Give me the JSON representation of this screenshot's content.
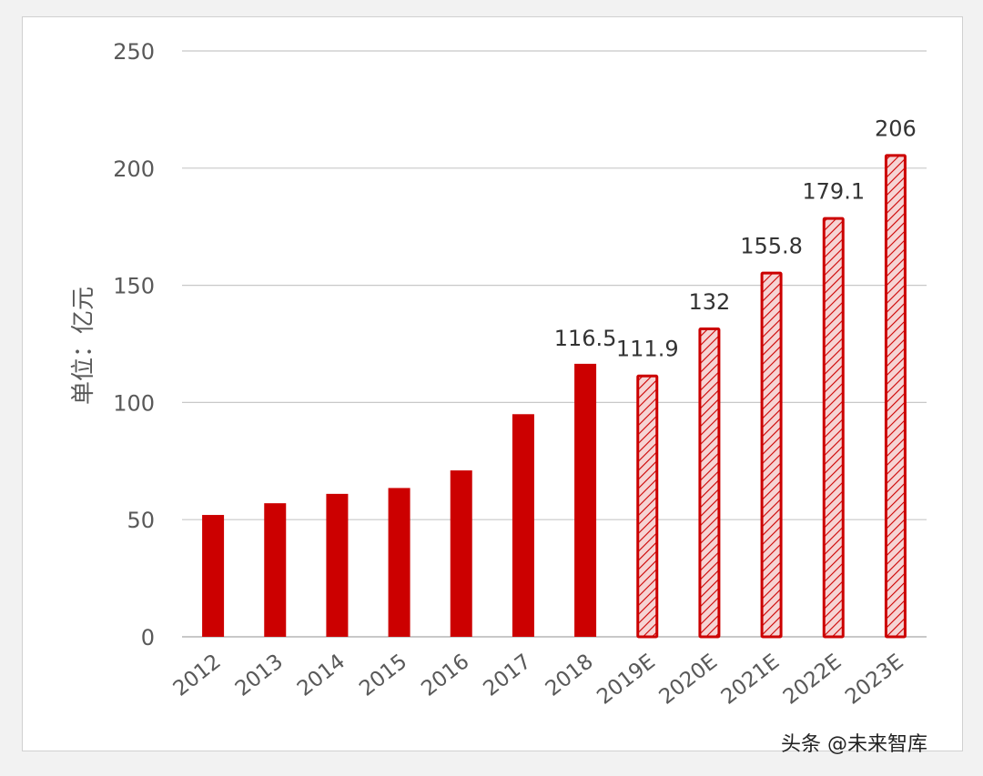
{
  "chart_data": {
    "type": "bar",
    "ylabel": "单位：亿元",
    "ylim": [
      0,
      250
    ],
    "yticks": [
      0,
      50,
      100,
      150,
      200,
      250
    ],
    "grid": true,
    "categories": [
      "2012",
      "2013",
      "2014",
      "2015",
      "2016",
      "2017",
      "2018",
      "2019E",
      "2020E",
      "2021E",
      "2022E",
      "2023E"
    ],
    "values": [
      52,
      57,
      61,
      63.5,
      71,
      95,
      116.5,
      111.9,
      132,
      155.8,
      179.1,
      206
    ],
    "forecast": [
      false,
      false,
      false,
      false,
      false,
      false,
      false,
      true,
      true,
      true,
      true,
      true
    ],
    "data_labels": [
      "",
      "",
      "",
      "",
      "",
      "",
      "116.5",
      "111.9",
      "132",
      "155.8",
      "179.1",
      "206"
    ],
    "colors": {
      "actual": "#cc0000",
      "forecast_border": "#cc0000",
      "forecast_fill": "#f6d4d4",
      "grid": "#c8c8c8",
      "text": "#595959"
    }
  },
  "watermark": {
    "text": "头条 @未来智库"
  }
}
